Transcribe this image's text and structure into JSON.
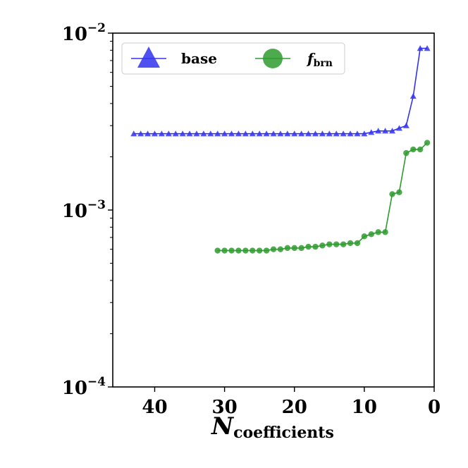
{
  "chart_data": {
    "type": "line",
    "xlabel": {
      "main": "N",
      "sub": "coefficients"
    },
    "xlim": [
      46,
      0
    ],
    "ylim": [
      0.0001,
      0.01
    ],
    "yscale": "log",
    "x_ticks": [
      {
        "value": 40,
        "label": "40"
      },
      {
        "value": 30,
        "label": "30"
      },
      {
        "value": 20,
        "label": "20"
      },
      {
        "value": 10,
        "label": "10"
      },
      {
        "value": 0,
        "label": "0"
      }
    ],
    "y_ticks": [
      {
        "value": 0.01,
        "base": "10",
        "exp": "−2"
      },
      {
        "value": 0.001,
        "base": "10",
        "exp": "−3"
      },
      {
        "value": 0.0001,
        "base": "10",
        "exp": "−4"
      }
    ],
    "grid": false,
    "legend": {
      "position": "top",
      "columns": 2
    },
    "series": [
      {
        "name": "base",
        "marker": "triangle-up",
        "color": "#3333ee",
        "x": [
          43,
          42,
          41,
          40,
          39,
          38,
          37,
          36,
          35,
          34,
          33,
          32,
          31,
          30,
          29,
          28,
          27,
          26,
          25,
          24,
          23,
          22,
          21,
          20,
          19,
          18,
          17,
          16,
          15,
          14,
          13,
          12,
          11,
          10,
          9,
          8,
          7,
          6,
          5,
          4,
          3,
          2,
          1
        ],
        "y": [
          0.0027,
          0.0027,
          0.0027,
          0.0027,
          0.0027,
          0.0027,
          0.0027,
          0.0027,
          0.0027,
          0.0027,
          0.0027,
          0.0027,
          0.0027,
          0.0027,
          0.0027,
          0.0027,
          0.0027,
          0.0027,
          0.0027,
          0.0027,
          0.0027,
          0.0027,
          0.0027,
          0.0027,
          0.0027,
          0.0027,
          0.0027,
          0.0027,
          0.0027,
          0.0027,
          0.0027,
          0.0027,
          0.0027,
          0.0027,
          0.00275,
          0.0028,
          0.0028,
          0.0028,
          0.0029,
          0.003,
          0.0044,
          0.0082,
          0.0082
        ]
      },
      {
        "name": "f",
        "name_sub": "brn",
        "marker": "circle",
        "color": "#2e9b2e",
        "x": [
          31,
          30,
          29,
          28,
          27,
          26,
          25,
          24,
          23,
          22,
          21,
          20,
          19,
          18,
          17,
          16,
          15,
          14,
          13,
          12,
          11,
          10,
          9,
          8,
          7,
          6,
          5,
          4,
          3,
          2,
          1
        ],
        "y": [
          0.00059,
          0.00059,
          0.00059,
          0.00059,
          0.00059,
          0.00059,
          0.00059,
          0.00059,
          0.0006,
          0.0006,
          0.00061,
          0.00061,
          0.00061,
          0.00062,
          0.00062,
          0.00063,
          0.00064,
          0.00064,
          0.00064,
          0.00065,
          0.00065,
          0.00071,
          0.00073,
          0.00075,
          0.00075,
          0.00123,
          0.00126,
          0.0021,
          0.0022,
          0.0022,
          0.0024
        ]
      }
    ]
  }
}
